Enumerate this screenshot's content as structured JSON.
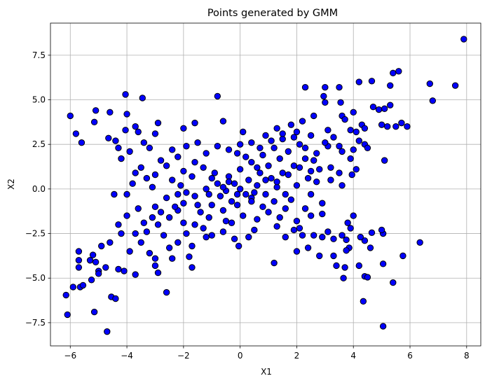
{
  "chart_data": {
    "type": "scatter",
    "title": "Points generated by GMM",
    "xlabel": "X1",
    "ylabel": "X2",
    "xlim": [
      -6.7,
      8.5
    ],
    "ylim": [
      -8.8,
      9.3
    ],
    "xticks": [
      -6,
      -4,
      -2,
      0,
      2,
      4,
      6,
      8
    ],
    "xtick_labels": [
      "−6",
      "−4",
      "−2",
      "0",
      "2",
      "4",
      "6",
      "8"
    ],
    "yticks": [
      -7.5,
      -5.0,
      -2.5,
      0.0,
      2.5,
      5.0,
      7.5
    ],
    "ytick_labels": [
      "−7.5",
      "−5.0",
      "−2.5",
      "0.0",
      "2.5",
      "5.0",
      "7.5"
    ],
    "grid": true,
    "marker_color": "#0000ff",
    "edge_color": "#000000",
    "points": [
      [
        7.9,
        8.4
      ],
      [
        5.4,
        6.5
      ],
      [
        5.6,
        6.6
      ],
      [
        6.7,
        5.9
      ],
      [
        7.6,
        5.8
      ],
      [
        6.8,
        4.95
      ],
      [
        4.2,
        6.0
      ],
      [
        4.65,
        6.05
      ],
      [
        3.0,
        5.7
      ],
      [
        2.3,
        5.7
      ],
      [
        3.5,
        5.7
      ],
      [
        5.3,
        5.8
      ],
      [
        2.95,
        5.2
      ],
      [
        3.0,
        4.85
      ],
      [
        3.55,
        4.85
      ],
      [
        4.7,
        4.6
      ],
      [
        5.1,
        4.5
      ],
      [
        5.3,
        4.7
      ],
      [
        4.9,
        4.45
      ],
      [
        5.7,
        3.7
      ],
      [
        5.9,
        3.5
      ],
      [
        5.5,
        3.5
      ],
      [
        5.2,
        3.5
      ],
      [
        5.0,
        3.6
      ],
      [
        4.0,
        4.3
      ],
      [
        3.6,
        4.1
      ],
      [
        3.7,
        3.9
      ],
      [
        4.3,
        3.6
      ],
      [
        4.4,
        3.4
      ],
      [
        3.9,
        3.3
      ],
      [
        4.1,
        3.2
      ],
      [
        4.2,
        2.7
      ],
      [
        4.4,
        2.5
      ],
      [
        4.5,
        2.3
      ],
      [
        4.0,
        2.2
      ],
      [
        3.6,
        2.1
      ],
      [
        3.1,
        2.4
      ],
      [
        5.1,
        1.6
      ],
      [
        3.9,
        1.7
      ],
      [
        4.1,
        1.1
      ],
      [
        3.95,
        0.8
      ],
      [
        3.5,
        0.9
      ],
      [
        3.2,
        0.5
      ],
      [
        2.7,
        0.4
      ],
      [
        2.5,
        1.0
      ],
      [
        -6.0,
        4.1
      ],
      [
        -5.8,
        3.1
      ],
      [
        -5.6,
        2.6
      ],
      [
        -5.1,
        4.4
      ],
      [
        -5.15,
        3.75
      ],
      [
        -4.6,
        4.3
      ],
      [
        -4.05,
        5.3
      ],
      [
        -3.45,
        5.1
      ],
      [
        -4.0,
        4.2
      ],
      [
        -4.65,
        2.85
      ],
      [
        -4.4,
        2.7
      ],
      [
        -4.05,
        3.3
      ],
      [
        -3.7,
        3.5
      ],
      [
        -3.6,
        3.2
      ],
      [
        -3.9,
        2.1
      ],
      [
        -3.4,
        2.6
      ],
      [
        -3.2,
        2.3
      ],
      [
        -3.0,
        3.1
      ],
      [
        -2.9,
        3.7
      ],
      [
        -2.0,
        3.4
      ],
      [
        -1.6,
        3.7
      ],
      [
        -0.8,
        5.2
      ],
      [
        -0.6,
        3.8
      ],
      [
        -1.9,
        2.4
      ],
      [
        -2.4,
        2.2
      ],
      [
        -2.8,
        1.6
      ],
      [
        -3.5,
        1.2
      ],
      [
        -3.7,
        0.9
      ],
      [
        -4.2,
        1.7
      ],
      [
        -4.3,
        2.3
      ],
      [
        -3.3,
        0.6
      ],
      [
        -3.1,
        0.1
      ],
      [
        -2.2,
        -0.3
      ],
      [
        -3.8,
        0.3
      ],
      [
        -4.0,
        -0.3
      ],
      [
        -4.45,
        -0.3
      ],
      [
        -4.0,
        -1.5
      ],
      [
        -3.7,
        -2.5
      ],
      [
        -3.5,
        -3.0
      ],
      [
        -3.9,
        -3.5
      ],
      [
        -3.2,
        -3.6
      ],
      [
        -4.3,
        -2.0
      ],
      [
        -4.2,
        -2.5
      ],
      [
        -4.6,
        -3.0
      ],
      [
        -4.9,
        -3.2
      ],
      [
        -5.2,
        -3.7
      ],
      [
        -5.1,
        -4.1
      ],
      [
        -5.7,
        -3.5
      ],
      [
        -5.7,
        -4.0
      ],
      [
        -5.7,
        -4.4
      ],
      [
        -5.3,
        -4.0
      ],
      [
        -4.75,
        -4.4
      ],
      [
        -4.3,
        -4.5
      ],
      [
        -4.1,
        -4.6
      ],
      [
        -3.7,
        -4.8
      ],
      [
        -3.0,
        -4.3
      ],
      [
        -2.9,
        -4.7
      ],
      [
        -3.0,
        -3.9
      ],
      [
        -2.4,
        -3.9
      ],
      [
        -1.7,
        -4.4
      ],
      [
        -1.8,
        -3.8
      ],
      [
        -1.0,
        -2.6
      ],
      [
        -1.3,
        -2.2
      ],
      [
        -5.9,
        -5.5
      ],
      [
        -5.65,
        -5.5
      ],
      [
        -5.55,
        -5.4
      ],
      [
        -5.25,
        -5.1
      ],
      [
        -5.0,
        -4.6
      ],
      [
        -5.0,
        -4.75
      ],
      [
        -4.55,
        -6.05
      ],
      [
        -4.4,
        -6.15
      ],
      [
        -6.15,
        -5.95
      ],
      [
        -6.1,
        -7.05
      ],
      [
        -5.15,
        -6.9
      ],
      [
        -4.7,
        -8.0
      ],
      [
        -2.6,
        -5.8
      ],
      [
        -0.05,
        -3.2
      ],
      [
        1.2,
        -4.15
      ],
      [
        2.8,
        -3.75
      ],
      [
        3.3,
        -3.75
      ],
      [
        3.4,
        -4.3
      ],
      [
        3.7,
        -4.4
      ],
      [
        3.65,
        -5.0
      ],
      [
        4.2,
        -4.3
      ],
      [
        4.4,
        -4.9
      ],
      [
        4.5,
        -4.95
      ],
      [
        4.35,
        -6.3
      ],
      [
        5.05,
        -4.2
      ],
      [
        5.05,
        -7.7
      ],
      [
        5.4,
        -5.25
      ],
      [
        5.75,
        -3.75
      ],
      [
        6.35,
        -3.0
      ],
      [
        5.05,
        -2.5
      ],
      [
        5.0,
        -2.3
      ],
      [
        4.4,
        -2.9
      ],
      [
        4.6,
        -3.3
      ],
      [
        3.75,
        -2.85
      ],
      [
        3.85,
        -3.3
      ],
      [
        3.75,
        -3.45
      ],
      [
        4.25,
        -2.7
      ],
      [
        4.65,
        -2.45
      ],
      [
        3.9,
        -2.2
      ],
      [
        3.3,
        -2.8
      ],
      [
        3.6,
        -2.6
      ],
      [
        2.9,
        -2.7
      ],
      [
        2.6,
        -2.6
      ],
      [
        2.2,
        -2.6
      ],
      [
        2.1,
        -2.2
      ],
      [
        2.5,
        -1.5
      ],
      [
        2.3,
        -1.1
      ],
      [
        2.9,
        -0.8
      ],
      [
        2.0,
        -1.8
      ],
      [
        1.9,
        -2.3
      ],
      [
        2.0,
        -3.5
      ],
      [
        1.6,
        -2.7
      ],
      [
        1.3,
        -2.1
      ],
      [
        0.5,
        -2.3
      ],
      [
        0.3,
        -2.7
      ],
      [
        -0.2,
        -2.8
      ],
      [
        -0.6,
        -2.4
      ],
      [
        -0.5,
        -1.8
      ],
      [
        0.1,
        -1.5
      ],
      [
        1.0,
        -1.3
      ],
      [
        1.6,
        -1.1
      ],
      [
        2.4,
        -3.3
      ],
      [
        3.1,
        -2.4
      ],
      [
        3.8,
        -1.9
      ],
      [
        4.0,
        -1.5
      ],
      [
        2.9,
        -1.4
      ],
      [
        -2.2,
        -1.2
      ],
      [
        -2.5,
        -1.6
      ],
      [
        -2.9,
        -2.0
      ],
      [
        -3.1,
        -1.6
      ],
      [
        -3.4,
        -1.9
      ],
      [
        -2.7,
        -2.6
      ],
      [
        -2.5,
        -3.3
      ],
      [
        -2.2,
        -3.0
      ],
      [
        -1.9,
        -2.5
      ],
      [
        -1.6,
        -2.0
      ],
      [
        -1.4,
        -1.3
      ],
      [
        -1.0,
        -0.9
      ],
      [
        -0.7,
        -0.4
      ],
      [
        -0.3,
        -0.7
      ],
      [
        0.2,
        -0.3
      ],
      [
        0.6,
        0.2
      ],
      [
        1.1,
        0.6
      ],
      [
        1.5,
        0.9
      ],
      [
        1.9,
        1.3
      ],
      [
        2.3,
        1.7
      ],
      [
        2.7,
        2.0
      ],
      [
        3.0,
        2.6
      ],
      [
        2.5,
        3.0
      ],
      [
        2.0,
        3.2
      ],
      [
        1.5,
        2.8
      ],
      [
        1.2,
        2.3
      ],
      [
        0.8,
        1.9
      ],
      [
        0.4,
        1.5
      ],
      [
        0.0,
        1.1
      ],
      [
        -0.4,
        0.7
      ],
      [
        -0.8,
        0.3
      ],
      [
        -1.2,
        0.0
      ],
      [
        -1.6,
        -0.4
      ],
      [
        -2.0,
        -0.8
      ],
      [
        -2.4,
        0.5
      ],
      [
        -2.0,
        1.0
      ],
      [
        -1.6,
        1.5
      ],
      [
        -1.2,
        2.0
      ],
      [
        -0.8,
        2.4
      ],
      [
        -0.4,
        2.2
      ],
      [
        0.0,
        2.5
      ],
      [
        0.4,
        2.6
      ],
      [
        0.9,
        3.0
      ],
      [
        1.3,
        3.4
      ],
      [
        1.8,
        3.6
      ],
      [
        2.2,
        3.8
      ],
      [
        2.6,
        4.1
      ],
      [
        3.1,
        3.3
      ],
      [
        3.3,
        2.9
      ],
      [
        3.5,
        2.4
      ],
      [
        2.8,
        1.1
      ],
      [
        2.4,
        0.6
      ],
      [
        2.0,
        0.2
      ],
      [
        1.6,
        -0.3
      ],
      [
        1.2,
        -0.7
      ],
      [
        0.8,
        -1.0
      ],
      [
        0.4,
        -0.5
      ],
      [
        0.0,
        0.0
      ],
      [
        -0.4,
        0.4
      ],
      [
        -0.9,
        0.9
      ],
      [
        -1.3,
        1.2
      ],
      [
        -1.7,
        0.7
      ],
      [
        -2.1,
        0.2
      ],
      [
        -2.6,
        -0.5
      ],
      [
        -3.0,
        -1.0
      ],
      [
        -1.1,
        -1.6
      ],
      [
        -0.6,
        -1.2
      ],
      [
        -0.1,
        -0.9
      ],
      [
        0.3,
        0.5
      ],
      [
        0.7,
        0.9
      ],
      [
        1.0,
        1.3
      ],
      [
        1.4,
        1.7
      ],
      [
        1.7,
        2.1
      ],
      [
        2.1,
        2.5
      ],
      [
        0.6,
        1.2
      ],
      [
        0.9,
        0.5
      ],
      [
        1.3,
        0.1
      ],
      [
        0.5,
        -0.2
      ],
      [
        -0.2,
        0.3
      ],
      [
        -0.5,
        -0.1
      ],
      [
        -1.0,
        0.6
      ],
      [
        -1.5,
        -0.9
      ],
      [
        0.2,
        1.8
      ],
      [
        0.7,
        2.3
      ],
      [
        1.1,
        2.7
      ],
      [
        1.5,
        3.1
      ],
      [
        1.9,
        2.9
      ],
      [
        2.3,
        2.3
      ],
      [
        2.6,
        1.6
      ],
      [
        2.1,
        1.2
      ],
      [
        1.7,
        0.8
      ],
      [
        1.3,
        0.4
      ],
      [
        0.9,
        -0.3
      ],
      [
        0.4,
        -0.7
      ],
      [
        -0.1,
        -0.3
      ],
      [
        -0.6,
        0.1
      ],
      [
        -1.1,
        -0.3
      ],
      [
        -1.9,
        -0.2
      ],
      [
        -2.3,
        -1.0
      ],
      [
        -2.8,
        -1.3
      ],
      [
        -3.3,
        -2.4
      ],
      [
        -3.6,
        -1.1
      ],
      [
        -1.5,
        2.6
      ],
      [
        -2.2,
        1.8
      ],
      [
        -2.6,
        1.3
      ],
      [
        -3.0,
        0.8
      ],
      [
        0.1,
        3.2
      ],
      [
        -0.1,
        2.0
      ],
      [
        3.2,
        1.2
      ],
      [
        2.5,
        -0.3
      ],
      [
        1.8,
        -0.6
      ],
      [
        3.6,
        0.2
      ],
      [
        1.4,
        -1.6
      ],
      [
        0.6,
        -1.7
      ],
      [
        -0.3,
        -1.9
      ],
      [
        -1.2,
        -2.7
      ],
      [
        -1.7,
        -3.2
      ],
      [
        -2.0,
        -1.9
      ]
    ]
  }
}
